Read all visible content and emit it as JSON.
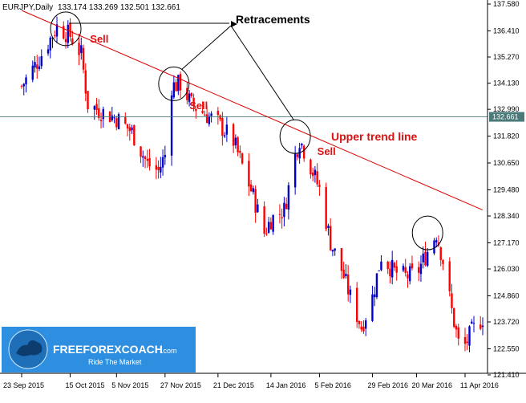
{
  "header": {
    "symbol": "EURJPY,Daily",
    "ohlc": "133.174 133.269 132.501 132.661"
  },
  "colors": {
    "background": "#ffffff",
    "bull": "#0000cc",
    "bear": "#ff0000",
    "trendline": "#dd0000",
    "annotation": "#dd1111",
    "price_line": "#4a7a7a",
    "axis": "#000000",
    "logo_bg": "#2e8fe0"
  },
  "logo": {
    "name": "FREEFOREXCOACH",
    "suffix": ".com",
    "tagline": "Ride The Market"
  },
  "chart_data": {
    "type": "candlestick",
    "title": "EURJPY,Daily",
    "ylim": [
      121.41,
      137.58
    ],
    "y_ticks": [
      "137.580",
      "136.410",
      "135.270",
      "134.130",
      "132.990",
      "131.820",
      "130.650",
      "129.480",
      "128.340",
      "127.170",
      "126.030",
      "124.860",
      "123.720",
      "122.550",
      "121.410"
    ],
    "current_price": "132.661",
    "x_ticks": [
      "23 Sep 2015",
      "15 Oct 2015",
      "5 Nov 2015",
      "27 Nov 2015",
      "21 Dec 2015",
      "14 Jan 2016",
      "5 Feb 2016",
      "29 Feb 2016",
      "20 Mar 2016",
      "11 Apr 2016"
    ],
    "close_path": [
      [
        "23 Sep 2015",
        134.0
      ],
      [
        "1 Oct 2015",
        135.2
      ],
      [
        "9 Oct 2015",
        136.6
      ],
      [
        "15 Oct 2015",
        136.2
      ],
      [
        "20 Oct 2015",
        135.4
      ],
      [
        "23 Oct 2015",
        133.2
      ],
      [
        "29 Oct 2015",
        132.9
      ],
      [
        "5 Nov 2015",
        132.6
      ],
      [
        "12 Nov 2015",
        132.0
      ],
      [
        "19 Nov 2015",
        130.6
      ],
      [
        "24 Nov 2015",
        130.3
      ],
      [
        "27 Nov 2015",
        131.0
      ],
      [
        "30 Nov 2015",
        134.0
      ],
      [
        "4 Dec 2015",
        134.1
      ],
      [
        "9 Dec 2015",
        133.2
      ],
      [
        "15 Dec 2015",
        132.8
      ],
      [
        "21 Dec 2015",
        132.4
      ],
      [
        "28 Dec 2015",
        131.6
      ],
      [
        "6 Jan 2016",
        129.2
      ],
      [
        "11 Jan 2016",
        127.6
      ],
      [
        "14 Jan 2016",
        128.2
      ],
      [
        "20 Jan 2016",
        128.6
      ],
      [
        "25 Jan 2016",
        131.0
      ],
      [
        "27 Jan 2016",
        131.7
      ],
      [
        "1 Feb 2016",
        130.5
      ],
      [
        "5 Feb 2016",
        129.5
      ],
      [
        "10 Feb 2016",
        127.2
      ],
      [
        "15 Feb 2016",
        126.0
      ],
      [
        "19 Feb 2016",
        124.8
      ],
      [
        "24 Feb 2016",
        123.5
      ],
      [
        "29 Feb 2016",
        124.8
      ],
      [
        "4 Mar 2016",
        126.6
      ],
      [
        "10 Mar 2016",
        125.9
      ],
      [
        "15 Mar 2016",
        125.7
      ],
      [
        "20 Mar 2016",
        125.8
      ],
      [
        "25 Mar 2016",
        126.8
      ],
      [
        "29 Mar 2016",
        127.6
      ],
      [
        "1 Apr 2016",
        126.4
      ],
      [
        "5 Apr 2016",
        124.2
      ],
      [
        "8 Apr 2016",
        122.8
      ],
      [
        "11 Apr 2016",
        122.7
      ],
      [
        "14 Apr 2016",
        123.3
      ],
      [
        "19 Apr 2016",
        123.9
      ]
    ],
    "trendline": {
      "from": [
        "23 Sep 2015",
        137.3
      ],
      "to": [
        "19 Apr 2016",
        128.6
      ]
    },
    "circles": [
      {
        "date": "13 Oct 2015",
        "price": 136.5
      },
      {
        "date": "1 Dec 2015",
        "price": 134.1
      },
      {
        "date": "25 Jan 2016",
        "price": 131.8
      },
      {
        "date": "25 Mar 2016",
        "price": 127.6
      }
    ],
    "annotations": {
      "retracements": "Retracements",
      "trend_label": "Upper trend line",
      "sell_label": "Sell"
    },
    "sell_marks": [
      {
        "date": "24 Oct 2015",
        "price": 135.9
      },
      {
        "date": "8 Dec 2015",
        "price": 133.0
      },
      {
        "date": "4 Feb 2016",
        "price": 131.0
      }
    ]
  }
}
